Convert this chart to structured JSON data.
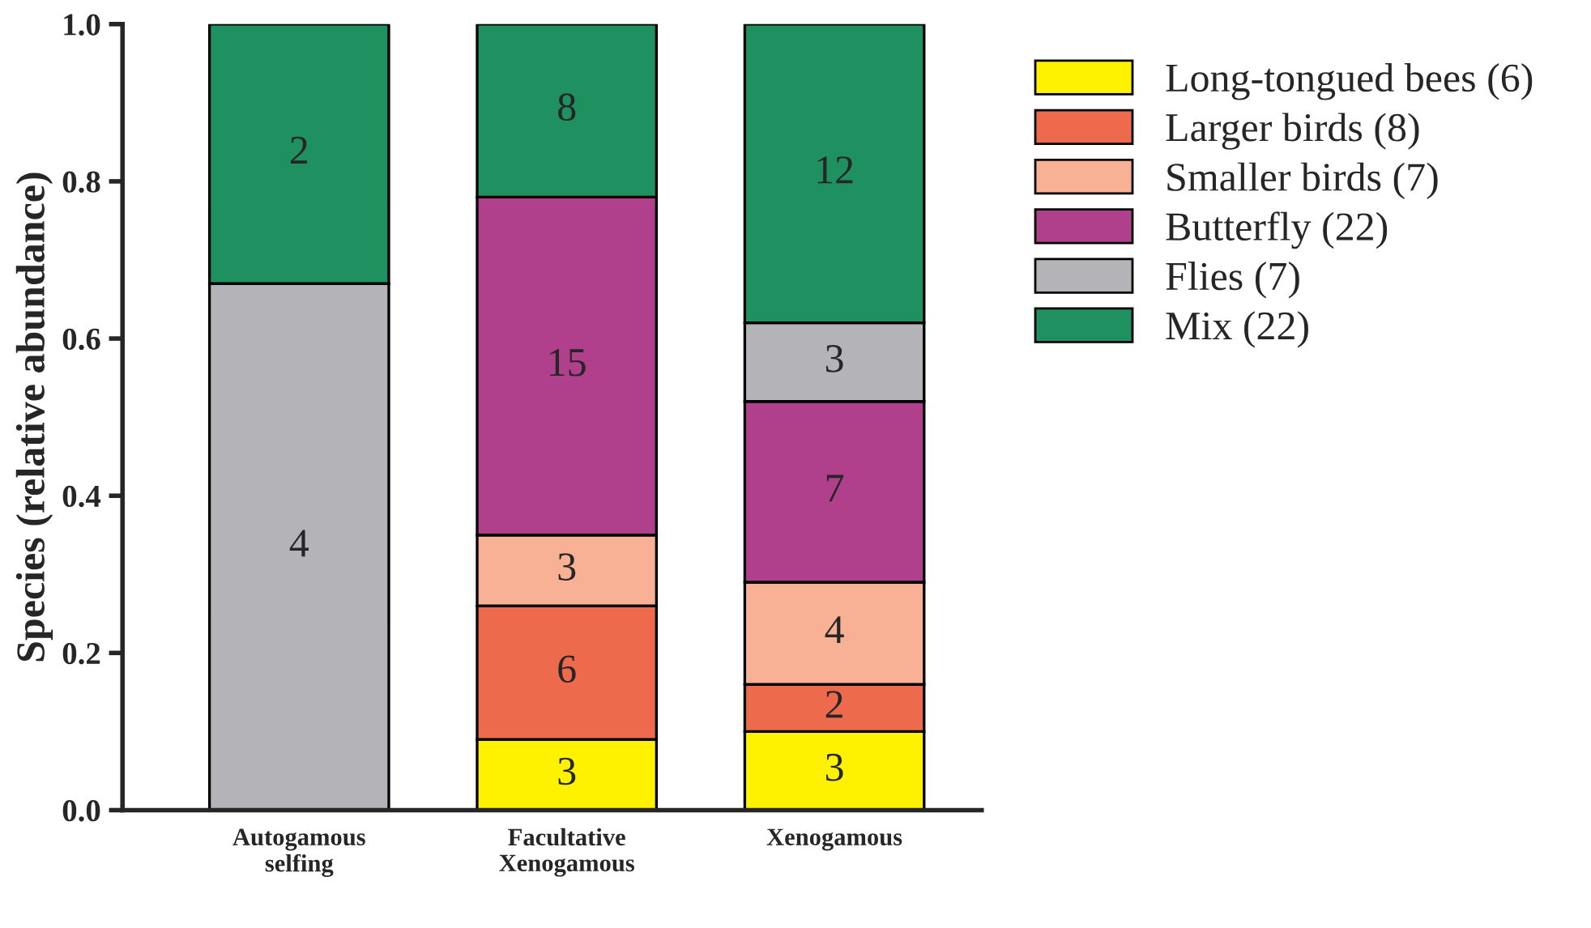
{
  "chart_data": {
    "type": "bar",
    "stacked": true,
    "ylabel": "Species (relative abundance)",
    "categories": [
      "Autogamous\nselfing",
      "Facultative\nXenogamous",
      "Xenogamous"
    ],
    "series": [
      {
        "name": "Long-tongued bees (6)",
        "color": "#fff200",
        "values": [
          null,
          0.09,
          0.1
        ]
      },
      {
        "name": "Larger birds (8)",
        "color": "#ee6a4d",
        "values": [
          null,
          0.17,
          0.06
        ]
      },
      {
        "name": "Smaller birds (7)",
        "color": "#f8b194",
        "values": [
          null,
          0.09,
          0.13
        ]
      },
      {
        "name": "Butterfly (22)",
        "color": "#b0408c",
        "values": [
          null,
          0.43,
          0.23
        ]
      },
      {
        "name": "Flies (7)",
        "color": "#b3b3b8",
        "values": [
          0.67,
          null,
          0.1
        ]
      },
      {
        "name": "Mix (22)",
        "color": "#1f9160",
        "values": [
          0.33,
          0.22,
          0.38
        ]
      }
    ],
    "annotations": [
      "3",
      "3",
      "6",
      "2",
      "3",
      "4",
      "15",
      "7",
      "4",
      "3",
      "2",
      "8",
      "12"
    ],
    "ylim": [
      0,
      1.0
    ],
    "yticks": [
      {
        "value": 0,
        "label": "0.0"
      },
      {
        "value": 0.2,
        "label": "0.2"
      },
      {
        "value": 0.4,
        "label": "0.4"
      },
      {
        "value": 0.6,
        "label": "0.6"
      },
      {
        "value": 0.8,
        "label": "0.8"
      },
      {
        "value": 1.0,
        "label": "1.0"
      }
    ],
    "grid": false,
    "legend": "right"
  }
}
